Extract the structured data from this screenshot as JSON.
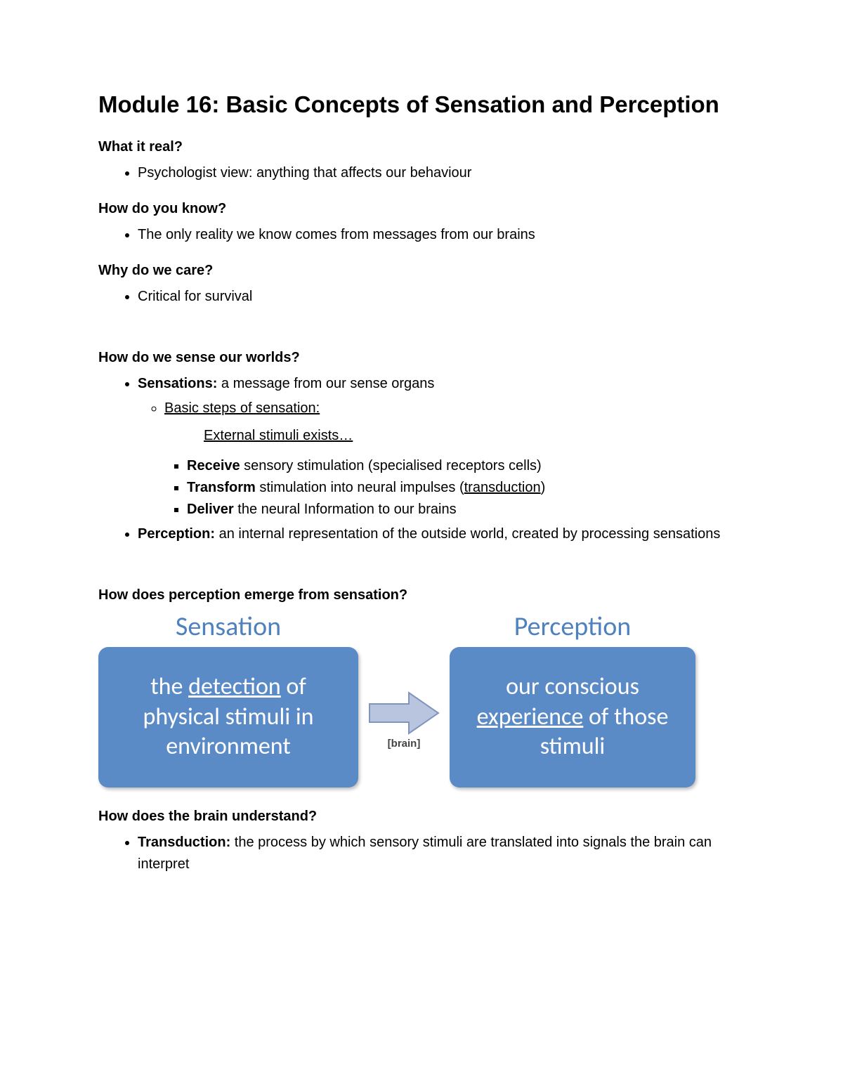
{
  "title": "Module 16: Basic Concepts of Sensation and Perception",
  "sections": {
    "s1": {
      "heading": "What it real?",
      "b1": "Psychologist view: anything that affects our behaviour"
    },
    "s2": {
      "heading": "How do you know?",
      "b1": "The only reality we know comes from messages from our brains"
    },
    "s3": {
      "heading": "Why do we care?",
      "b1": "Critical for survival"
    },
    "s4": {
      "heading": "How do we sense our worlds?",
      "sensations_label": "Sensations:",
      "sensations_text": " a message from our sense organs",
      "basic_steps": "Basic steps of sensation:",
      "ext_stimuli": "External stimuli exists… ",
      "step1_b": "Receive",
      "step1_t": " sensory stimulation (specialised receptors cells)",
      "step2_b": "Transform",
      "step2_t_a": " stimulation into neural impulses (",
      "step2_u": "transduction",
      "step2_t_b": ")",
      "step3_b": "Deliver",
      "step3_t": " the neural Information to our brains",
      "perception_label": "Perception:",
      "perception_text": " an internal representation of the outside world, created by processing sensations"
    },
    "s5": {
      "heading": "How does perception emerge from sensation?"
    },
    "s6": {
      "heading": "How does the brain understand?",
      "b1_label": "Transduction:",
      "b1_text": " the process by which sensory stimuli are translated into signals the brain can interpret"
    }
  },
  "diagram": {
    "left_header": "Sensation",
    "right_header": "Perception",
    "header_color": "#4f81bd",
    "header_fontsize": 38,
    "card_left": {
      "pre": "the ",
      "u": "detection",
      "post": " of physical stimuli in environment"
    },
    "card_right": {
      "pre": "our conscious ",
      "u": "experience",
      "post": " of those stimuli"
    },
    "card_bg": "#5b8bc6",
    "card_text_color": "#ffffff",
    "card_fontsize": 34,
    "card_radius": 14,
    "card_left_w": 370,
    "card_left_h": 200,
    "card_right_w": 350,
    "card_right_h": 200,
    "arrow_fill": "#b9c5de",
    "arrow_stroke": "#7f94bf",
    "arrow_w": 110,
    "arrow_h": 70,
    "arrow_label": "[brain]"
  },
  "colors": {
    "page_bg": "#ffffff",
    "text": "#000000"
  }
}
